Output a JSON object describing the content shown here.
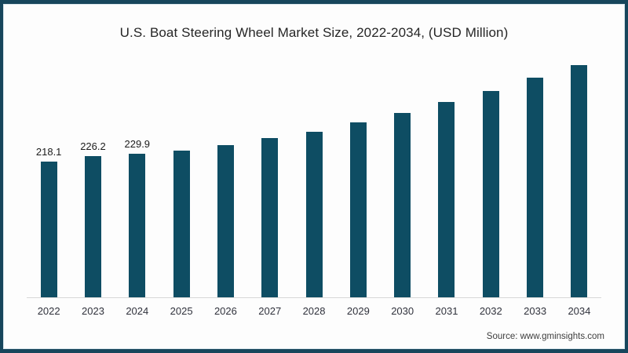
{
  "title": "U.S. Boat Steering Wheel Market Size, 2022-2034, (USD Million)",
  "source": "Source: www.gminsights.com",
  "colors": {
    "bar": "#0e4d63",
    "frame": "#17465c",
    "axis_line": "#d8d8d8",
    "title_text": "#262626",
    "background": "#fdfdfd"
  },
  "chart_data": {
    "type": "bar",
    "title": "U.S. Boat Steering Wheel Market Size, 2022-2034, (USD Million)",
    "xlabel": "",
    "ylabel": "USD Million",
    "categories": [
      "2022",
      "2023",
      "2024",
      "2025",
      "2026",
      "2027",
      "2028",
      "2029",
      "2030",
      "2031",
      "2032",
      "2033",
      "2034"
    ],
    "values": [
      218.1,
      226.2,
      229.9,
      235.0,
      244.1,
      255.0,
      265.5,
      280.6,
      295.7,
      312.9,
      330.5,
      351.9,
      372.6
    ],
    "data_labels": [
      "218.1",
      "226.2",
      "229.9",
      "",
      "",
      "",
      "",
      "",
      "",
      "",
      "",
      "",
      ""
    ],
    "ylim": [
      0,
      400
    ],
    "grid": false,
    "legend_position": "none",
    "bar_color": "#0e4d63"
  }
}
